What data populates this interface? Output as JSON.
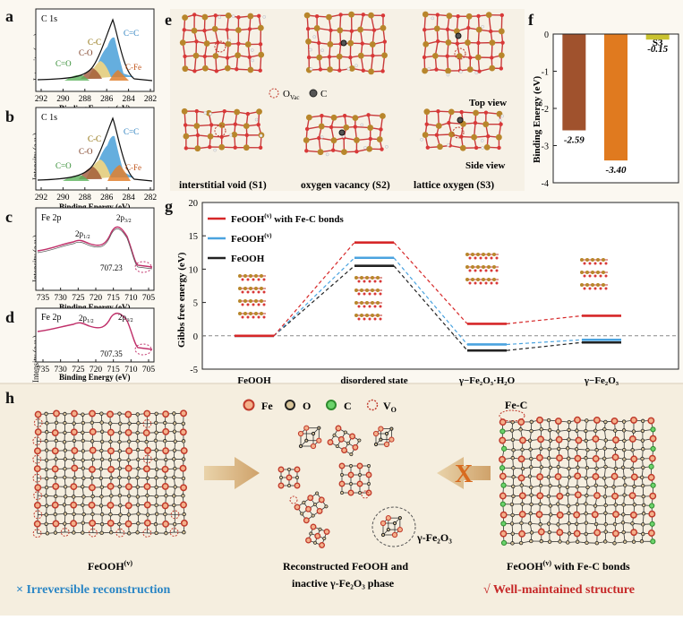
{
  "panels": {
    "a": {
      "letter": "a",
      "title": "C 1s",
      "ylabel": "Intensity (a.u.)",
      "xlabel": "Binding Energy (eV)",
      "ticks": [
        "292",
        "290",
        "288",
        "286",
        "284",
        "282"
      ],
      "peaks": [
        "C=C",
        "C-C",
        "C-O",
        "C=O",
        "C-Fe"
      ]
    },
    "b": {
      "letter": "b",
      "title": "C 1s",
      "ylabel": "Intensity (a.u.)",
      "xlabel": "Binding Energy (eV)",
      "ticks": [
        "292",
        "290",
        "288",
        "286",
        "284",
        "282"
      ],
      "peaks": [
        "C=C",
        "C-C",
        "C-O",
        "C=O",
        "C-Fe"
      ]
    },
    "c": {
      "letter": "c",
      "title": "Fe 2p",
      "ylabel": "Intensity (a.u.)",
      "xlabel": "Binding Energy (eV)",
      "ticks": [
        "735",
        "730",
        "725",
        "720",
        "715",
        "710",
        "705"
      ],
      "p1": "2p",
      "p1sub": "1/2",
      "p2": "2p",
      "p2sub": "3/2",
      "value": "707.23"
    },
    "d": {
      "letter": "d",
      "title": "Fe 2p",
      "ylabel": "Intensity (a.u.)",
      "xlabel": "Binding Energy (eV)",
      "ticks": [
        "735",
        "730",
        "725",
        "720",
        "715",
        "710",
        "705"
      ],
      "p1": "2p",
      "p1sub": "1/2",
      "p2": "2p",
      "p2sub": "3/2",
      "value": "707.35"
    },
    "e": {
      "letter": "e",
      "legend_ovac": "O",
      "legend_ovac_sub": "Vac",
      "legend_c": "C",
      "top_view": "Top view",
      "side_view": "Side view",
      "sites": [
        "interstitial void (S1)",
        "oxygen vacancy (S2)",
        "lattice oxygen (S3)"
      ]
    },
    "f": {
      "letter": "f"
    },
    "g": {
      "letter": "g"
    },
    "h": {
      "letter": "h",
      "legend": [
        "Fe",
        "O",
        "C",
        "V"
      ],
      "legend_vo_sub": "O",
      "left_caption": "FeOOH",
      "left_sup": "(v)",
      "irreversible": "× Irreversible reconstruction",
      "center_caption1": "Reconstructed FeOOH and",
      "center_caption2": "inactive γ-Fe₂O₃ phase",
      "gamma_label": "γ-Fe₂O₃",
      "right_caption": "FeOOH",
      "right_sup": "(v)",
      "right_caption_tail": " with Fe-C bonds",
      "well": "√ Well-maintained structure",
      "fec_label": "Fe-C",
      "cross": "X"
    }
  },
  "chart_data": [
    {
      "type": "bar",
      "panel": "f",
      "categories": [
        "S1",
        "S2",
        "S3"
      ],
      "values": [
        -2.59,
        -3.4,
        -0.15
      ],
      "value_labels": [
        "-2.59",
        "-3.40",
        "-0.15"
      ],
      "colors": [
        "#a0522d",
        "#e07a1f",
        "#c9c22f"
      ],
      "ylabel": "Binding Energy (eV)",
      "ylim": [
        -4,
        0
      ],
      "yticks": [
        "0",
        "-1",
        "-2",
        "-3",
        "-4"
      ]
    },
    {
      "type": "line",
      "panel": "g",
      "ylabel": "Gibbs free energy (eV)",
      "ylim": [
        -5,
        20
      ],
      "yticks": [
        "20",
        "15",
        "10",
        "5",
        "0",
        "-5"
      ],
      "categories": [
        "FeOOH",
        "disordered state",
        "γ−Fe₂O₃·H₂O",
        "γ−Fe₂O₃"
      ],
      "series": [
        {
          "name": "FeOOH^(v) with Fe-C bonds",
          "legend": "FeOOH",
          "legend_sup": "(v)",
          "legend_tail": " with Fe-C bonds",
          "color": "#d62728",
          "values": [
            0,
            14.0,
            1.8,
            3.0
          ]
        },
        {
          "name": "FeOOH^(v)",
          "legend": "FeOOH",
          "legend_sup": "(v)",
          "legend_tail": "",
          "color": "#4aa3df",
          "values": [
            0,
            11.7,
            -1.3,
            -0.6
          ]
        },
        {
          "name": "FeOOH",
          "legend": "FeOOH",
          "legend_sup": "",
          "legend_tail": "",
          "color": "#222222",
          "values": [
            0,
            10.5,
            -2.2,
            -1.0
          ]
        }
      ]
    }
  ]
}
